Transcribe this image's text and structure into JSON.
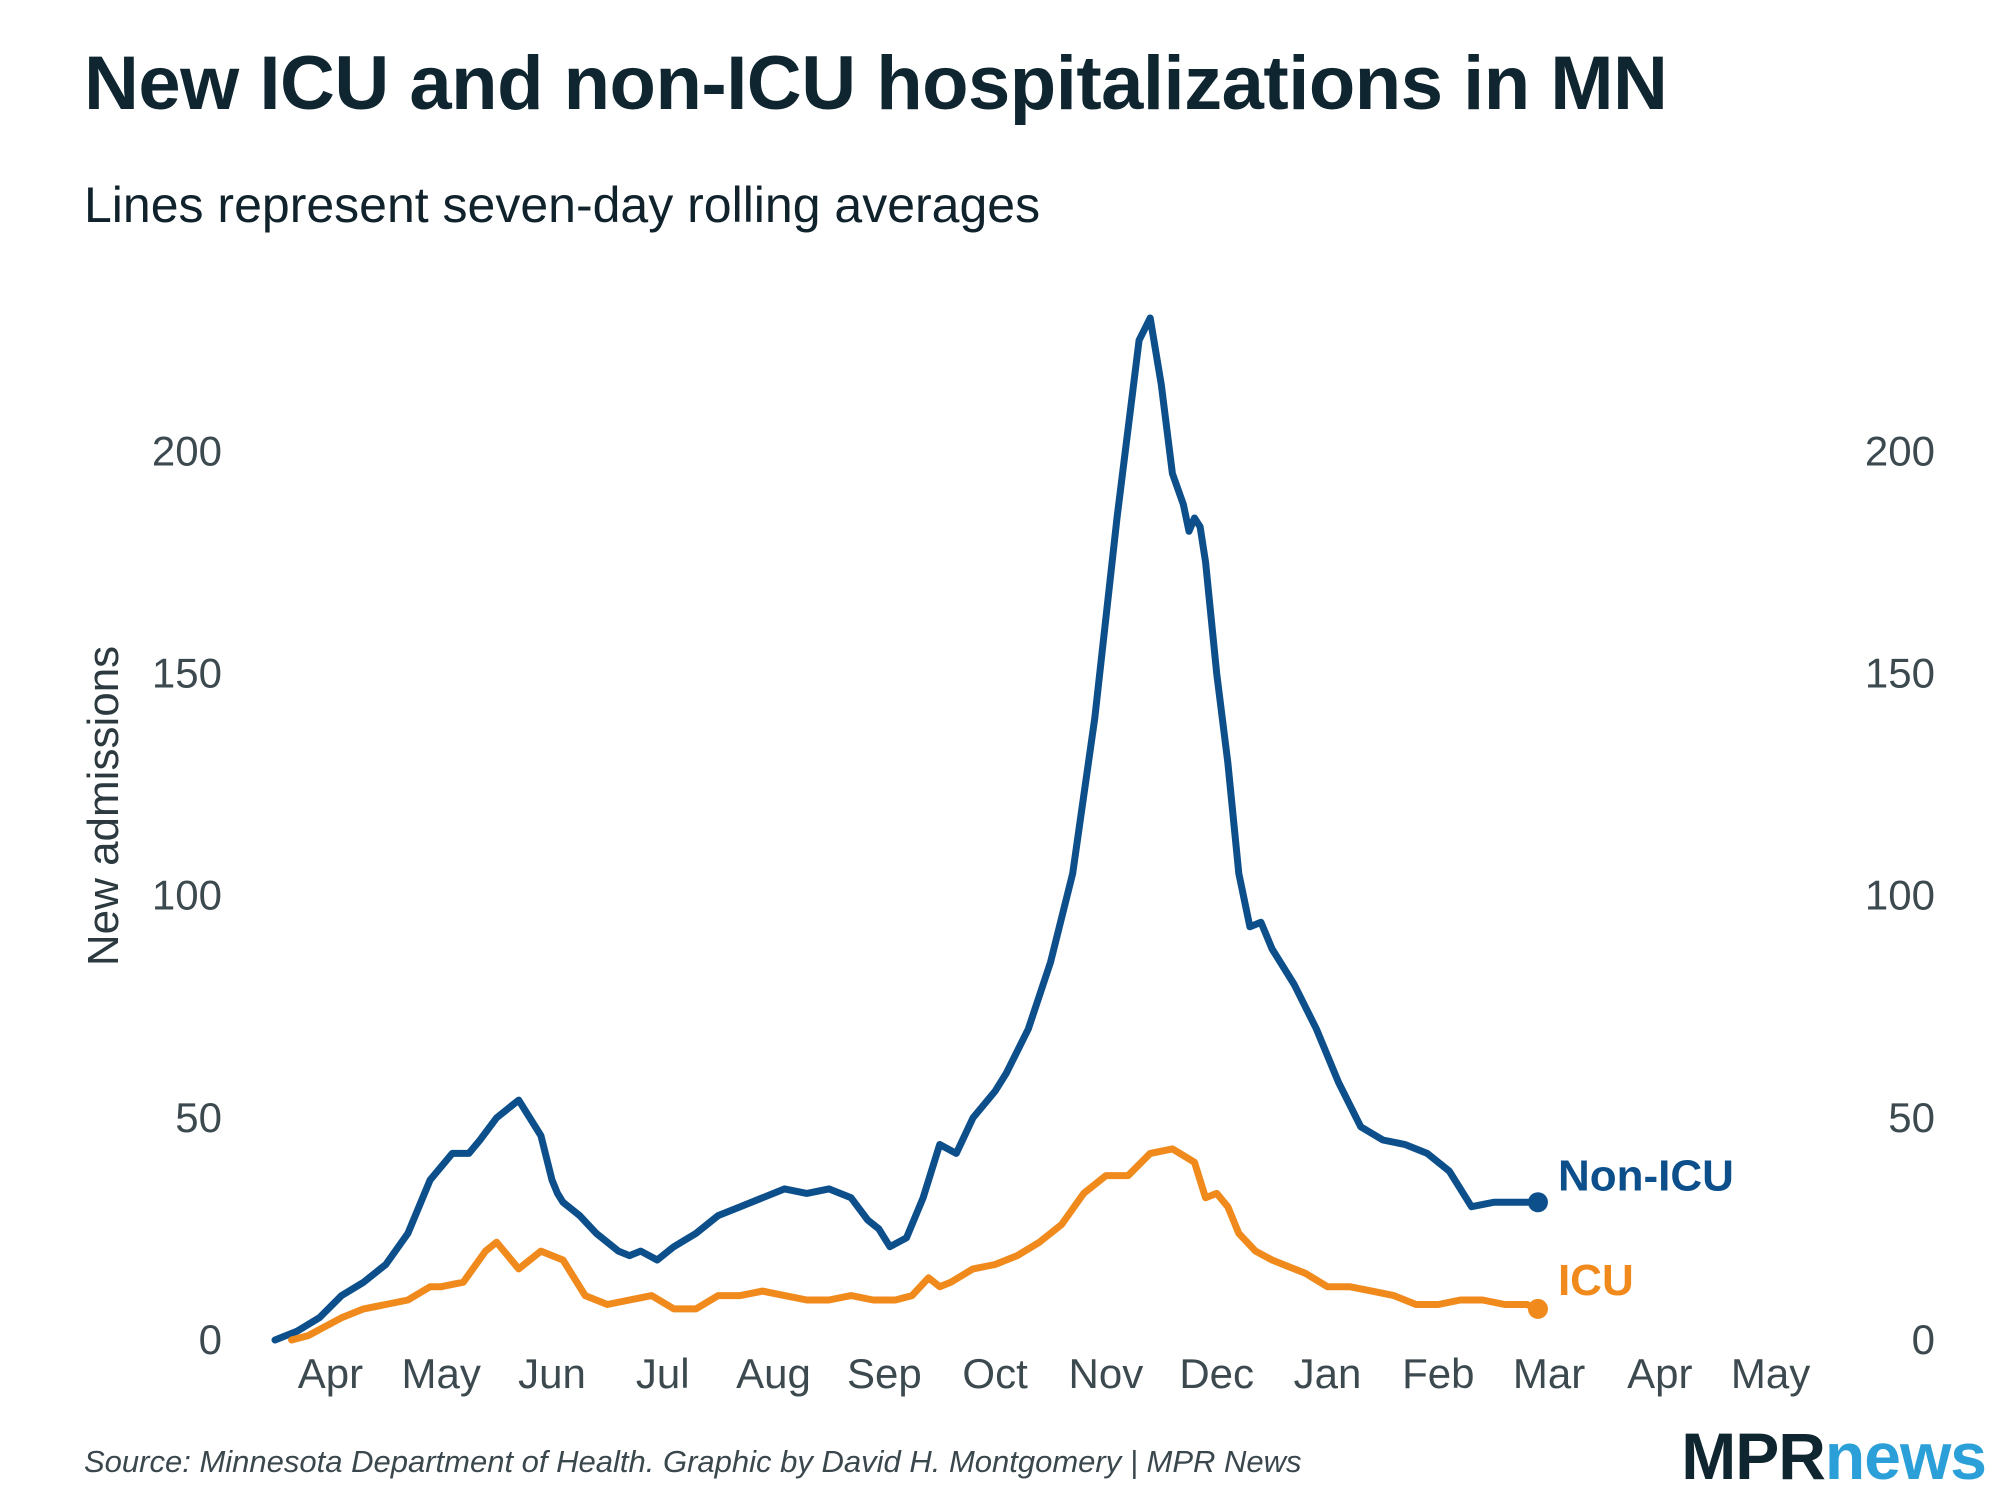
{
  "title": "New ICU and non-ICU hospitalizations in MN",
  "subtitle": "Lines represent seven-day rolling averages",
  "source": "Source: Minnesota Department of Health. Graphic by David H. Montgomery | MPR News",
  "logo": {
    "part1": "MPR",
    "part2": "news"
  },
  "colors": {
    "non_icu": "#0d4f8b",
    "icu": "#f08a1c",
    "text": "#10222b",
    "tick": "#3c4a50",
    "logo_dark": "#0f2530",
    "logo_blue": "#2a9fd8"
  },
  "chart_data": {
    "type": "line",
    "title": "New ICU and non-ICU hospitalizations in MN",
    "subtitle": "Lines represent seven-day rolling averages",
    "xlabel": "",
    "ylabel": "New admissions",
    "ylim": [
      0,
      230
    ],
    "xlim": [
      0,
      14
    ],
    "y_ticks": [
      0,
      50,
      100,
      150,
      200
    ],
    "x_ticks": [
      "Apr",
      "May",
      "Jun",
      "Jul",
      "Aug",
      "Sep",
      "Oct",
      "Nov",
      "Dec",
      "Jan",
      "Feb",
      "Mar",
      "Apr",
      "May"
    ],
    "x_units": "months from Mar 1 (label positions at month midpoints)",
    "series": [
      {
        "name": "Non-ICU",
        "color": "#0d4f8b",
        "x": [
          0.0,
          0.2,
          0.4,
          0.6,
          0.8,
          1.0,
          1.2,
          1.4,
          1.6,
          1.75,
          1.85,
          2.0,
          2.2,
          2.4,
          2.5,
          2.55,
          2.6,
          2.65,
          2.75,
          2.9,
          3.1,
          3.2,
          3.3,
          3.45,
          3.6,
          3.8,
          4.0,
          4.2,
          4.4,
          4.6,
          4.8,
          5.0,
          5.2,
          5.35,
          5.45,
          5.55,
          5.7,
          5.85,
          6.0,
          6.15,
          6.3,
          6.5,
          6.6,
          6.8,
          7.0,
          7.2,
          7.4,
          7.6,
          7.8,
          7.9,
          8.0,
          8.1,
          8.2,
          8.25,
          8.3,
          8.35,
          8.4,
          8.5,
          8.6,
          8.7,
          8.8,
          8.9,
          9.0,
          9.2,
          9.4,
          9.6,
          9.8,
          10.0,
          10.2,
          10.4,
          10.6,
          10.8,
          11.0,
          11.2,
          11.3,
          11.4
        ],
        "values": [
          0,
          2,
          5,
          10,
          13,
          17,
          24,
          36,
          42,
          42,
          45,
          50,
          54,
          46,
          36,
          33,
          31,
          30,
          28,
          24,
          20,
          19,
          20,
          18,
          21,
          24,
          28,
          30,
          32,
          34,
          33,
          34,
          32,
          27,
          25,
          21,
          23,
          32,
          44,
          42,
          50,
          56,
          60,
          70,
          85,
          105,
          140,
          185,
          225,
          230,
          215,
          195,
          188,
          182,
          185,
          183,
          175,
          150,
          130,
          105,
          93,
          94,
          88,
          80,
          70,
          58,
          48,
          45,
          44,
          42,
          38,
          30,
          31,
          31,
          31,
          31
        ],
        "end_label": "Non-ICU"
      },
      {
        "name": "ICU",
        "color": "#f08a1c",
        "x": [
          0.15,
          0.3,
          0.45,
          0.6,
          0.8,
          1.0,
          1.2,
          1.4,
          1.5,
          1.7,
          1.9,
          2.0,
          2.2,
          2.4,
          2.5,
          2.6,
          2.8,
          3.0,
          3.2,
          3.4,
          3.6,
          3.8,
          4.0,
          4.2,
          4.4,
          4.6,
          4.8,
          5.0,
          5.2,
          5.4,
          5.6,
          5.75,
          5.9,
          6.0,
          6.1,
          6.3,
          6.5,
          6.7,
          6.9,
          7.1,
          7.3,
          7.5,
          7.7,
          7.9,
          8.1,
          8.3,
          8.4,
          8.5,
          8.6,
          8.7,
          8.85,
          9.0,
          9.1,
          9.3,
          9.5,
          9.7,
          9.9,
          10.1,
          10.3,
          10.5,
          10.7,
          10.9,
          11.1,
          11.3,
          11.4
        ],
        "values": [
          0,
          1,
          3,
          5,
          7,
          8,
          9,
          12,
          12,
          13,
          20,
          22,
          16,
          20,
          19,
          18,
          10,
          8,
          9,
          10,
          7,
          7,
          10,
          10,
          11,
          10,
          9,
          9,
          10,
          9,
          9,
          10,
          14,
          12,
          13,
          16,
          17,
          19,
          22,
          26,
          33,
          37,
          37,
          42,
          43,
          40,
          32,
          33,
          30,
          24,
          20,
          18,
          17,
          15,
          12,
          12,
          11,
          10,
          8,
          8,
          9,
          9,
          8,
          8,
          7
        ],
        "end_label": "ICU"
      }
    ]
  }
}
